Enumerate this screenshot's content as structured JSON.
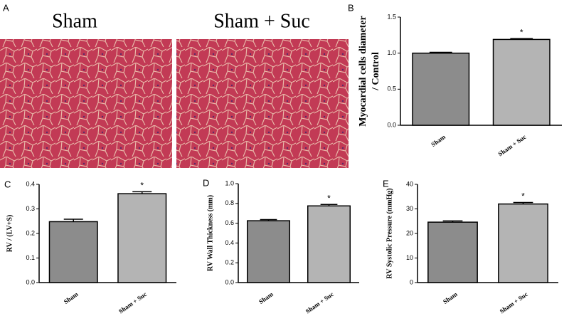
{
  "panel_a": {
    "label": "A",
    "captions": [
      "Sham",
      "Sham + Suc"
    ]
  },
  "chart_data": [
    {
      "type": "bar",
      "panel": "B",
      "ylabel": [
        "Myocardial cells diameter",
        "/ Control"
      ],
      "categories": [
        "Sham",
        "Sham + Suc"
      ],
      "values": [
        1.0,
        1.19
      ],
      "errors": [
        0.012,
        0.012
      ],
      "colors": [
        "#8c8c8c",
        "#b4b4b4"
      ],
      "ylim": [
        0,
        1.5
      ],
      "yticks": [
        {
          "value": 0,
          "label": "0.0"
        },
        0.5,
        {
          "value": 1,
          "label": "1.0"
        },
        1.5
      ],
      "annotation": "*"
    },
    {
      "type": "bar",
      "panel": "C",
      "ylabel": "RV / (LV+S)",
      "categories": [
        "Sham",
        "Sham + Suc"
      ],
      "values": [
        0.248,
        0.362
      ],
      "errors": [
        0.01,
        0.008
      ],
      "colors": [
        "#8c8c8c",
        "#b4b4b4"
      ],
      "ylim": [
        0,
        0.4
      ],
      "yticks": [
        {
          "value": 0,
          "label": "0.0"
        },
        0.1,
        0.2,
        0.3,
        0.4
      ],
      "annotation": "*"
    },
    {
      "type": "bar",
      "panel": "D",
      "ylabel": "RV Wall Thickness (mm)",
      "categories": [
        "Sham",
        "Sham + Suc"
      ],
      "values": [
        0.625,
        0.775
      ],
      "errors": [
        0.012,
        0.015
      ],
      "colors": [
        "#8c8c8c",
        "#b4b4b4"
      ],
      "ylim": [
        0,
        1
      ],
      "yticks": [
        {
          "value": 0,
          "label": "0.0"
        },
        0.2,
        0.4,
        0.6,
        0.8,
        {
          "value": 1,
          "label": "1.0"
        }
      ],
      "annotation": "*"
    },
    {
      "type": "bar",
      "panel": "E",
      "ylabel": "RV Systolic Pressure (mmHg)",
      "categories": [
        "Sham",
        "Sham + Suc"
      ],
      "values": [
        24.6,
        32
      ],
      "errors": [
        0.5,
        0.6
      ],
      "colors": [
        "#8c8c8c",
        "#b4b4b4"
      ],
      "ylim": [
        0,
        40
      ],
      "yticks": [
        0,
        10,
        20,
        30,
        40
      ],
      "annotation": "*"
    }
  ]
}
